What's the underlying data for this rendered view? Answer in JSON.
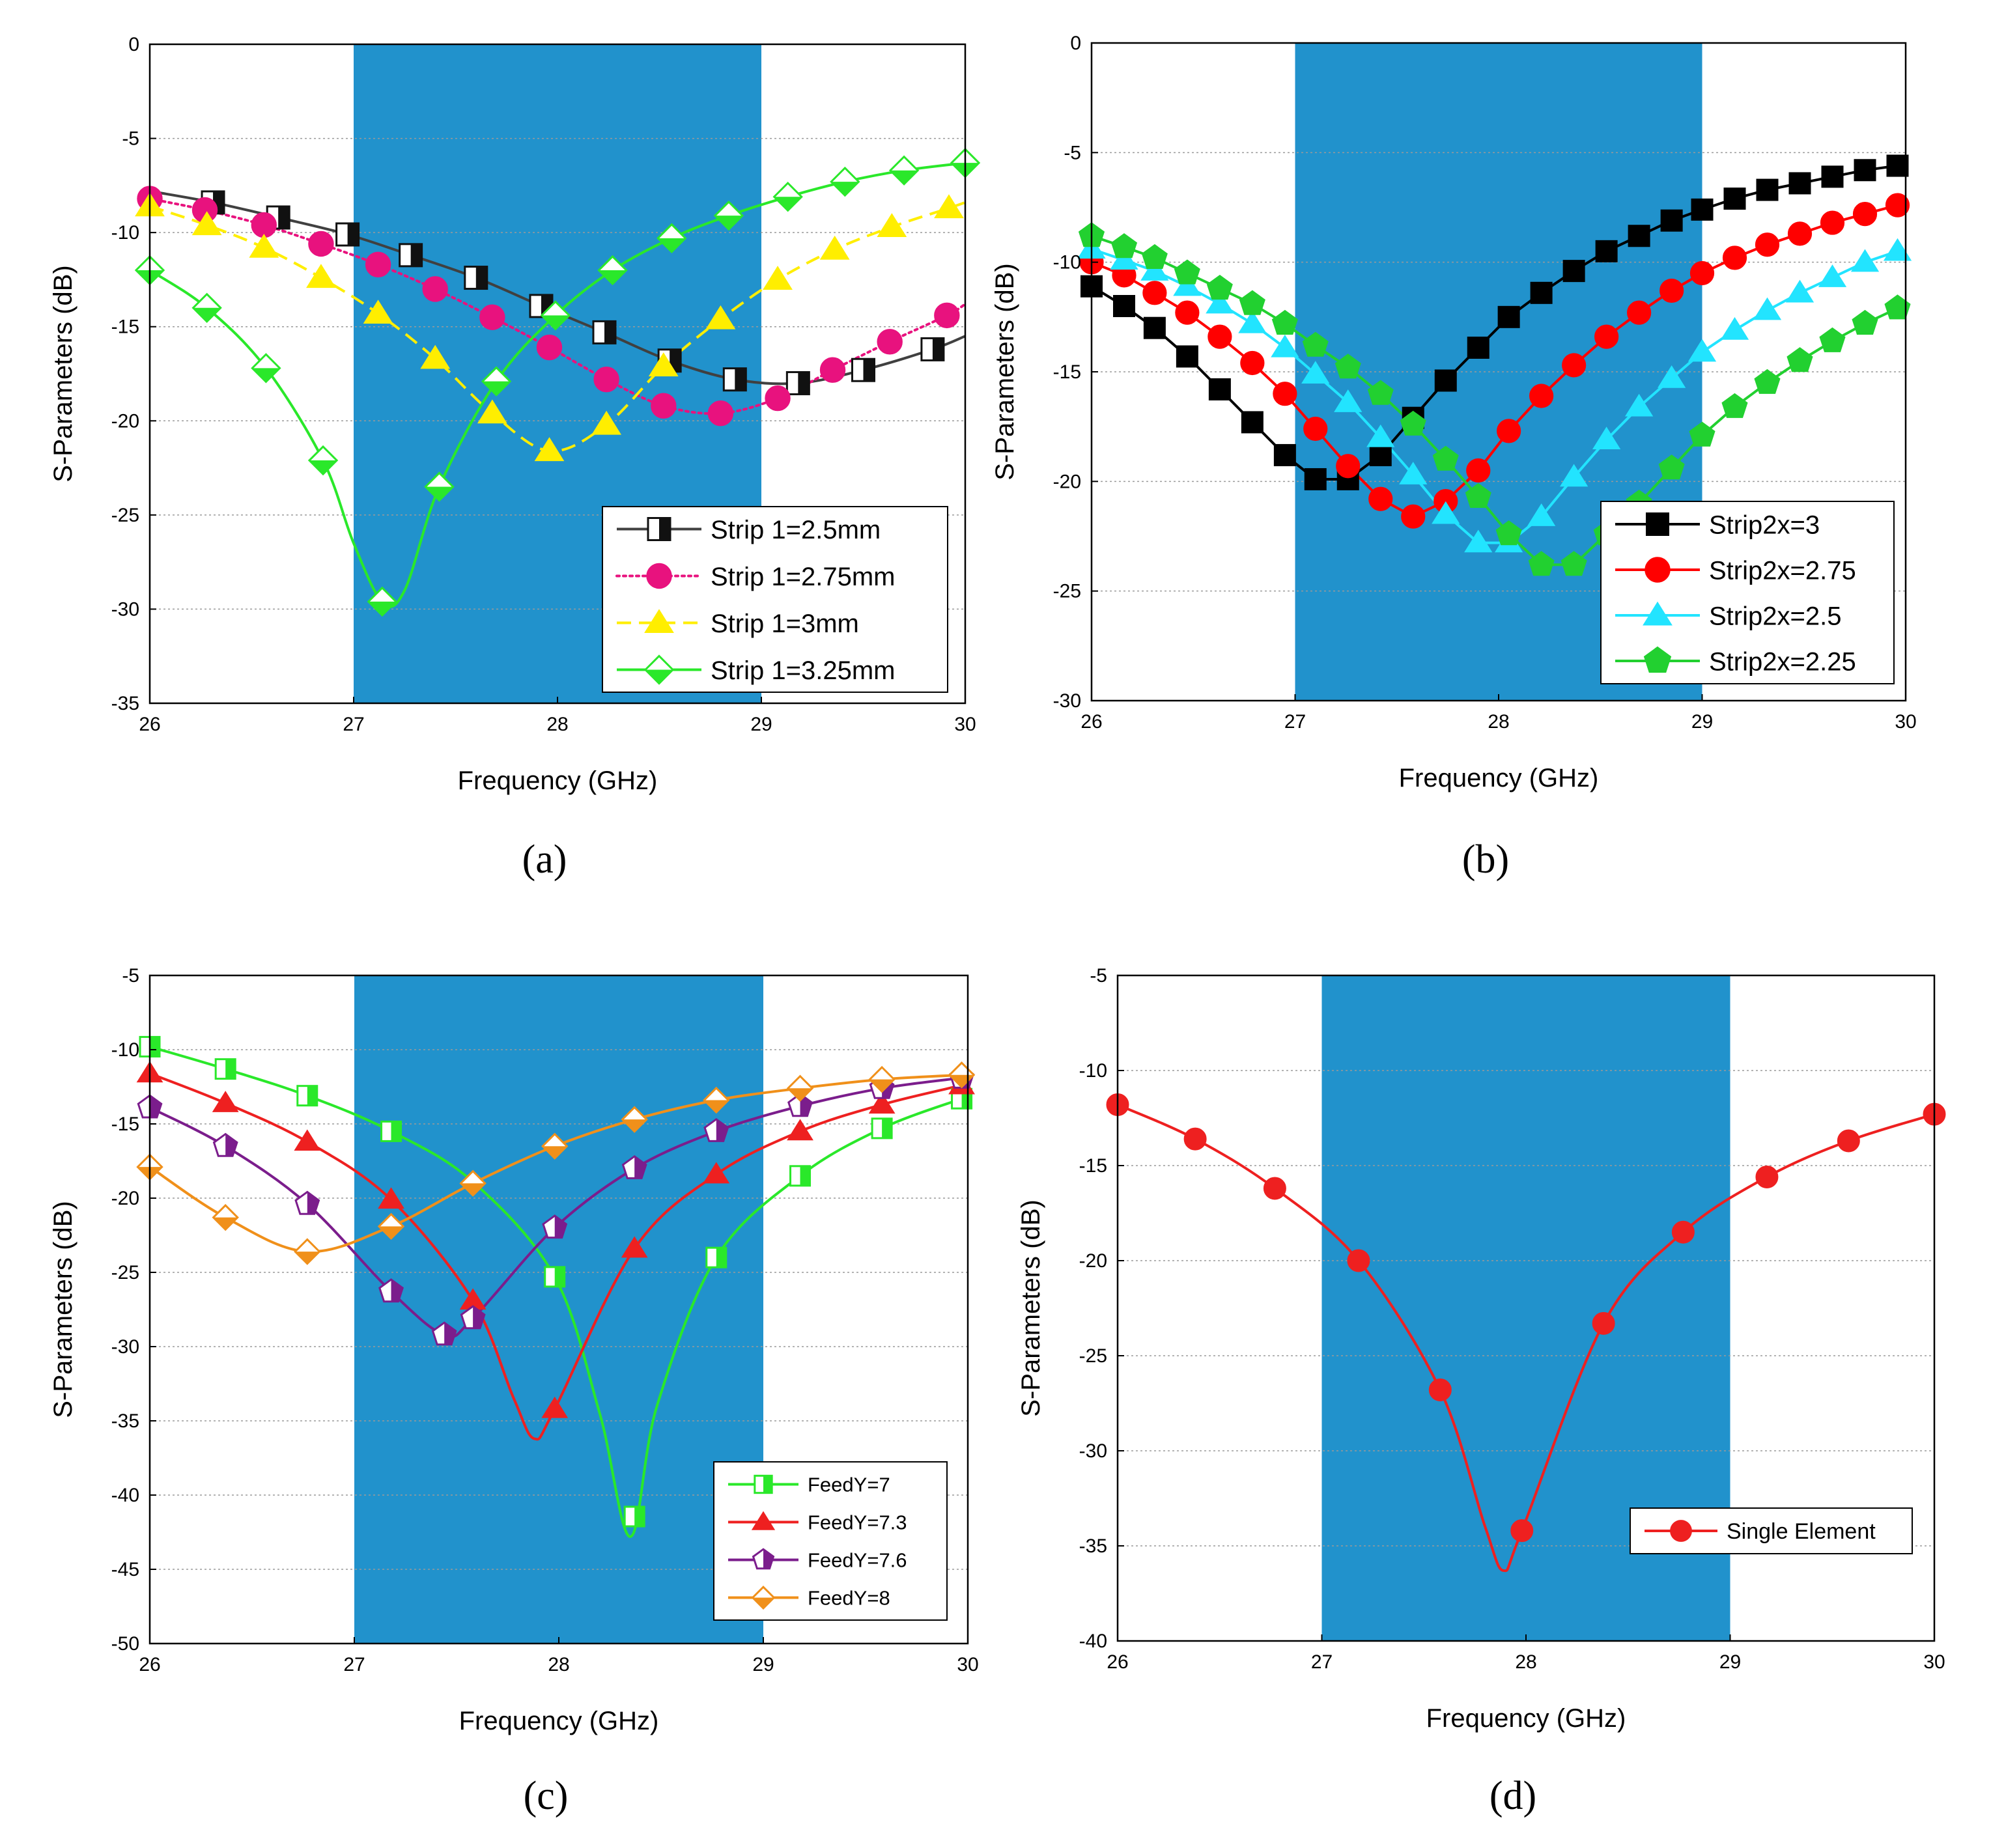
{
  "figure": {
    "band_color": "#2192cc",
    "band_range": [
      27,
      29
    ]
  },
  "chart_data": [
    {
      "type": "line",
      "panel": "(a)",
      "xlabel": "Frequency (GHz)",
      "ylabel": "S-Parameters (dB)",
      "xlim": [
        26,
        30
      ],
      "ylim": [
        -35,
        0
      ],
      "xticks": [
        "26",
        "27",
        "28",
        "29",
        "30"
      ],
      "yticks": [
        "0",
        "-5",
        "-10",
        "-15",
        "-20",
        "-25",
        "-30",
        "-35"
      ],
      "legend_position": "bottom-right",
      "series": [
        {
          "name": "Strip 1=2.5mm",
          "color": "#404040",
          "marker": "halfsquare",
          "dash": "solid",
          "smooth": true,
          "x": [
            26.0,
            26.31,
            26.63,
            26.97,
            27.28,
            27.6,
            27.92,
            28.23,
            28.55,
            28.87,
            29.18,
            29.5,
            29.84,
            30.0
          ],
          "y": [
            -7.8,
            -8.4,
            -9.2,
            -10.1,
            -11.2,
            -12.4,
            -13.9,
            -15.3,
            -16.8,
            -17.8,
            -18.0,
            -17.3,
            -16.2,
            -15.5
          ],
          "markers_x": [
            26.31,
            26.63,
            26.97,
            27.28,
            27.6,
            27.92,
            28.23,
            28.55,
            28.87,
            29.18,
            29.5,
            29.84
          ]
        },
        {
          "name": "Strip 1=2.75mm",
          "color": "#e8127e",
          "marker": "circle",
          "dash": "dotted",
          "smooth": true,
          "x": [
            26.0,
            26.27,
            26.56,
            26.84,
            27.12,
            27.4,
            27.68,
            27.96,
            28.24,
            28.52,
            28.8,
            29.08,
            29.35,
            29.63,
            29.91,
            30.0
          ],
          "y": [
            -8.2,
            -8.8,
            -9.6,
            -10.6,
            -11.7,
            -13.0,
            -14.5,
            -16.1,
            -17.8,
            -19.2,
            -19.6,
            -18.8,
            -17.3,
            -15.8,
            -14.4,
            -13.8
          ],
          "markers_x": [
            26.0,
            26.27,
            26.56,
            26.84,
            27.12,
            27.4,
            27.68,
            27.96,
            28.24,
            28.52,
            28.8,
            29.08,
            29.35,
            29.63,
            29.91
          ]
        },
        {
          "name": "Strip 1=3mm",
          "color": "#ffee00",
          "marker": "triangle",
          "dash": "dashed",
          "smooth": true,
          "x": [
            26.0,
            26.28,
            26.56,
            26.84,
            27.12,
            27.4,
            27.68,
            27.96,
            28.24,
            28.52,
            28.8,
            29.08,
            29.36,
            29.64,
            29.92,
            30.0
          ],
          "y": [
            -8.6,
            -9.6,
            -10.8,
            -12.4,
            -14.3,
            -16.7,
            -19.6,
            -21.6,
            -20.2,
            -17.1,
            -14.6,
            -12.5,
            -10.9,
            -9.7,
            -8.7,
            -8.4
          ],
          "markers_x": [
            26.0,
            26.28,
            26.56,
            26.84,
            27.12,
            27.4,
            27.68,
            27.96,
            28.24,
            28.52,
            28.8,
            29.08,
            29.36,
            29.64,
            29.92
          ]
        },
        {
          "name": "Strip 1=3.25mm",
          "color": "#2ae82a",
          "marker": "halfdiamond",
          "dash": "solid",
          "smooth": true,
          "x": [
            26.0,
            26.28,
            26.57,
            26.85,
            27.0,
            27.14,
            27.25,
            27.42,
            27.7,
            27.99,
            28.27,
            28.56,
            28.84,
            29.13,
            29.41,
            29.7,
            30.0
          ],
          "y": [
            -12.0,
            -14.0,
            -17.2,
            -22.1,
            -26.5,
            -29.6,
            -29.0,
            -23.5,
            -17.9,
            -14.4,
            -12.0,
            -10.3,
            -9.1,
            -8.1,
            -7.3,
            -6.7,
            -6.3
          ],
          "markers_x": [
            26.0,
            26.28,
            26.57,
            26.85,
            27.14,
            27.42,
            27.7,
            27.99,
            28.27,
            28.56,
            28.84,
            29.13,
            29.41,
            29.7,
            30.0
          ]
        }
      ]
    },
    {
      "type": "line",
      "panel": "(b)",
      "xlabel": "Frequency (GHz)",
      "ylabel": "S-Parameters (dB)",
      "xlim": [
        26,
        30
      ],
      "ylim": [
        -30,
        0
      ],
      "xticks": [
        "26",
        "27",
        "28",
        "29",
        "30"
      ],
      "yticks": [
        "0",
        "-5",
        "-10",
        "-15",
        "-20",
        "-25",
        "-30"
      ],
      "legend_position": "bottom-right",
      "series": [
        {
          "name": "Strip2x=3",
          "color": "#000000",
          "marker": "square",
          "dash": "solid",
          "smooth": false,
          "x": [
            26.0,
            26.16,
            26.31,
            26.47,
            26.63,
            26.79,
            26.95,
            27.1,
            27.26,
            27.42,
            27.58,
            27.74,
            27.9,
            28.05,
            28.21,
            28.37,
            28.53,
            28.69,
            28.85,
            29.0,
            29.16,
            29.32,
            29.48,
            29.64,
            29.8,
            29.96
          ],
          "y": [
            -11.1,
            -12.0,
            -13.0,
            -14.3,
            -15.8,
            -17.3,
            -18.8,
            -19.9,
            -19.9,
            -18.8,
            -17.1,
            -15.4,
            -13.9,
            -12.5,
            -11.4,
            -10.4,
            -9.5,
            -8.8,
            -8.1,
            -7.6,
            -7.1,
            -6.7,
            -6.4,
            -6.1,
            -5.8,
            -5.6
          ]
        },
        {
          "name": "Strip2x=2.75",
          "color": "#ff0000",
          "marker": "circle",
          "dash": "solid",
          "smooth": false,
          "x": [
            26.0,
            26.16,
            26.31,
            26.47,
            26.63,
            26.79,
            26.95,
            27.1,
            27.26,
            27.42,
            27.58,
            27.74,
            27.9,
            28.05,
            28.21,
            28.37,
            28.53,
            28.69,
            28.85,
            29.0,
            29.16,
            29.32,
            29.48,
            29.64,
            29.8,
            29.96
          ],
          "y": [
            -10.0,
            -10.6,
            -11.4,
            -12.3,
            -13.4,
            -14.6,
            -16.0,
            -17.6,
            -19.3,
            -20.8,
            -21.6,
            -20.9,
            -19.5,
            -17.7,
            -16.1,
            -14.7,
            -13.4,
            -12.3,
            -11.3,
            -10.5,
            -9.8,
            -9.2,
            -8.7,
            -8.2,
            -7.8,
            -7.4
          ]
        },
        {
          "name": "Strip2x=2.5",
          "color": "#22e4ff",
          "marker": "triangle",
          "dash": "solid",
          "smooth": false,
          "x": [
            26.0,
            26.16,
            26.31,
            26.47,
            26.63,
            26.79,
            26.95,
            27.1,
            27.26,
            27.42,
            27.58,
            27.74,
            27.9,
            28.05,
            28.21,
            28.37,
            28.53,
            28.69,
            28.85,
            29.0,
            29.16,
            29.32,
            29.48,
            29.64,
            29.8,
            29.96
          ],
          "y": [
            -9.4,
            -9.9,
            -10.4,
            -11.1,
            -11.9,
            -12.8,
            -13.9,
            -15.1,
            -16.4,
            -18.0,
            -19.7,
            -21.5,
            -22.8,
            -22.8,
            -21.6,
            -19.8,
            -18.1,
            -16.6,
            -15.3,
            -14.1,
            -13.1,
            -12.2,
            -11.4,
            -10.7,
            -10.0,
            -9.5
          ]
        },
        {
          "name": "Strip2x=2.25",
          "color": "#22d030",
          "marker": "pentagon",
          "dash": "solid",
          "smooth": false,
          "x": [
            26.0,
            26.16,
            26.31,
            26.47,
            26.63,
            26.79,
            26.95,
            27.1,
            27.26,
            27.42,
            27.58,
            27.74,
            27.9,
            28.05,
            28.21,
            28.37,
            28.53,
            28.69,
            28.85,
            29.0,
            29.16,
            29.32,
            29.48,
            29.64,
            29.8,
            29.96
          ],
          "y": [
            -8.8,
            -9.3,
            -9.8,
            -10.5,
            -11.2,
            -11.9,
            -12.8,
            -13.8,
            -14.8,
            -16.0,
            -17.4,
            -19.0,
            -20.7,
            -22.4,
            -23.8,
            -23.8,
            -22.4,
            -21.0,
            -19.4,
            -17.9,
            -16.6,
            -15.5,
            -14.5,
            -13.6,
            -12.8,
            -12.1
          ]
        }
      ]
    },
    {
      "type": "line",
      "panel": "(c)",
      "xlabel": "Frequency (GHz)",
      "ylabel": "S-Parameters (dB)",
      "xlim": [
        26,
        30
      ],
      "ylim": [
        -50,
        -5
      ],
      "xticks": [
        "26",
        "27",
        "28",
        "29",
        "30"
      ],
      "yticks": [
        "-5",
        "-10",
        "-15",
        "-20",
        "-25",
        "-30",
        "-35",
        "-40",
        "-45",
        "-50"
      ],
      "legend_position": "bottom-right",
      "series": [
        {
          "name": "FeedY=7",
          "color": "#2ae82a",
          "marker": "halfsquare",
          "dash": "solid",
          "smooth": true,
          "x": [
            26.0,
            26.37,
            26.77,
            27.18,
            27.58,
            27.98,
            28.2,
            28.35,
            28.48,
            28.77,
            29.18,
            29.58,
            29.97
          ],
          "y": [
            -9.8,
            -11.3,
            -13.1,
            -15.5,
            -18.9,
            -25.3,
            -34.5,
            -42.8,
            -34.0,
            -24.0,
            -18.5,
            -15.3,
            -13.3
          ],
          "markers_x": [
            26.0,
            26.37,
            26.77,
            27.18,
            27.98,
            28.37,
            28.77,
            29.18,
            29.58,
            29.97
          ]
        },
        {
          "name": "FeedY=7.3",
          "color": "#ee2020",
          "marker": "triangle",
          "dash": "solid",
          "smooth": true,
          "x": [
            26.0,
            26.37,
            26.77,
            27.18,
            27.58,
            27.78,
            27.88,
            27.98,
            28.37,
            28.77,
            29.18,
            29.58,
            29.97
          ],
          "y": [
            -11.6,
            -13.6,
            -16.2,
            -20.1,
            -26.9,
            -33.5,
            -36.2,
            -34.2,
            -23.4,
            -18.4,
            -15.5,
            -13.7,
            -12.4
          ],
          "markers_x": [
            26.0,
            26.37,
            26.77,
            27.18,
            27.58,
            27.98,
            28.37,
            28.77,
            29.18,
            29.58,
            29.97
          ]
        },
        {
          "name": "FeedY=7.6",
          "color": "#7b1d8c",
          "marker": "halfpentagon",
          "dash": "solid",
          "smooth": true,
          "x": [
            26.0,
            26.37,
            26.77,
            27.18,
            27.44,
            27.58,
            27.98,
            28.37,
            28.77,
            29.18,
            29.58,
            29.97
          ],
          "y": [
            -13.9,
            -16.5,
            -20.4,
            -26.3,
            -29.2,
            -28.1,
            -22.0,
            -18.0,
            -15.5,
            -13.8,
            -12.6,
            -11.9
          ]
        },
        {
          "name": "FeedY=8",
          "color": "#f0901a",
          "marker": "halfdiamond",
          "dash": "solid",
          "smooth": true,
          "x": [
            26.0,
            26.37,
            26.77,
            27.18,
            27.58,
            27.98,
            28.37,
            28.77,
            29.18,
            29.58,
            29.97
          ],
          "y": [
            -17.9,
            -21.3,
            -23.6,
            -21.9,
            -19.0,
            -16.5,
            -14.7,
            -13.4,
            -12.6,
            -12.0,
            -11.7
          ]
        }
      ]
    },
    {
      "type": "line",
      "panel": "(d)",
      "xlabel": "Frequency (GHz)",
      "ylabel": "S-Parameters (dB)",
      "xlim": [
        26,
        30
      ],
      "ylim": [
        -40,
        -5
      ],
      "xticks": [
        "26",
        "27",
        "28",
        "29",
        "30"
      ],
      "yticks": [
        "-5",
        "-10",
        "-15",
        "-20",
        "-25",
        "-30",
        "-35",
        "-40"
      ],
      "legend_position": "lower-right",
      "series": [
        {
          "name": "Single Element",
          "color": "#ee2020",
          "marker": "circle",
          "dash": "solid",
          "smooth": true,
          "x": [
            26.0,
            26.38,
            26.77,
            27.18,
            27.58,
            27.8,
            27.89,
            27.98,
            28.38,
            28.77,
            29.18,
            29.58,
            30.0
          ],
          "y": [
            -11.8,
            -13.6,
            -16.2,
            -20.0,
            -26.8,
            -34.0,
            -36.3,
            -34.2,
            -23.3,
            -18.5,
            -15.6,
            -13.7,
            -12.3
          ],
          "markers_x": [
            26.0,
            26.38,
            26.77,
            27.18,
            27.58,
            27.98,
            28.38,
            28.77,
            29.18,
            29.58,
            30.0
          ]
        }
      ]
    }
  ]
}
